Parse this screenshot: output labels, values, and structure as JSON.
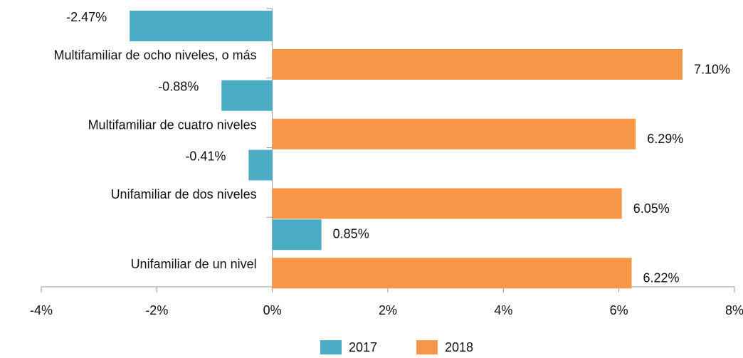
{
  "chart_data": {
    "type": "hbar",
    "categories": [
      "Multifamiliar de ocho niveles, o más",
      "Multifamiliar de cuatro niveles",
      "Unifamiliar de dos niveles",
      "Unifamiliar de un nivel"
    ],
    "series": [
      {
        "name": "2017",
        "color": "#4bacc6",
        "values": [
          -2.47,
          -0.88,
          -0.41,
          0.85
        ],
        "value_labels": [
          "-2.47%",
          "-0.88%",
          "-0.41%",
          "0.85%"
        ]
      },
      {
        "name": "2018",
        "color": "#f79646",
        "values": [
          7.1,
          6.29,
          6.05,
          6.22
        ],
        "value_labels": [
          "7.10%",
          "6.29%",
          "6.05%",
          "6.22%"
        ]
      }
    ],
    "xlim": [
      -4,
      8
    ],
    "xticks": [
      {
        "value": -4,
        "label": "-4%"
      },
      {
        "value": -2,
        "label": "-2%"
      },
      {
        "value": 0,
        "label": "0%"
      },
      {
        "value": 2,
        "label": "2%"
      },
      {
        "value": 4,
        "label": "4%"
      },
      {
        "value": 6,
        "label": "6%"
      },
      {
        "value": 8,
        "label": "8%"
      }
    ],
    "legend": "bottom"
  }
}
